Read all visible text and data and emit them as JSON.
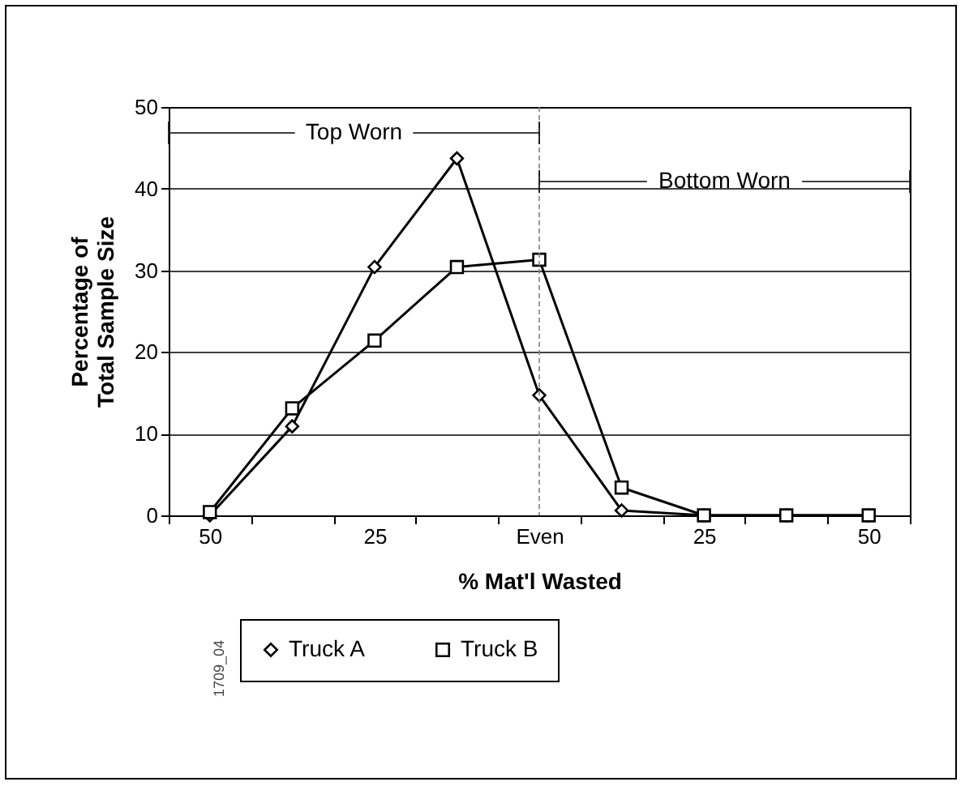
{
  "chart_data": {
    "type": "line",
    "xlabel": "% Mat'l Wasted",
    "ylabel": "Percentage of\nTotal Sample Size",
    "categories": [
      "50",
      null,
      "25",
      null,
      "Even",
      null,
      "25",
      null,
      "50"
    ],
    "series": [
      {
        "name": "Truck A",
        "color": "#000000",
        "marker": "diamond",
        "values": [
          0,
          10.9,
          30.4,
          43.7,
          14.7,
          0.6,
          0,
          0,
          0
        ]
      },
      {
        "name": "Truck B",
        "color": "#000000",
        "marker": "square",
        "values": [
          0.4,
          13.1,
          21.4,
          30.4,
          31.3,
          3.4,
          0,
          0,
          0
        ]
      }
    ],
    "ylim": [
      0,
      50
    ],
    "yticks": [
      0,
      10,
      20,
      30,
      40,
      50
    ],
    "grid": "y",
    "legend": "bottom",
    "ref_lines": [
      {
        "axis": "x",
        "value": "Even",
        "line_style": "dashed",
        "color": "#808080"
      }
    ],
    "annotations": [
      {
        "text": "Top Worn",
        "x": "Even"
      },
      "Bottom Worn",
      "1709_04"
    ]
  }
}
